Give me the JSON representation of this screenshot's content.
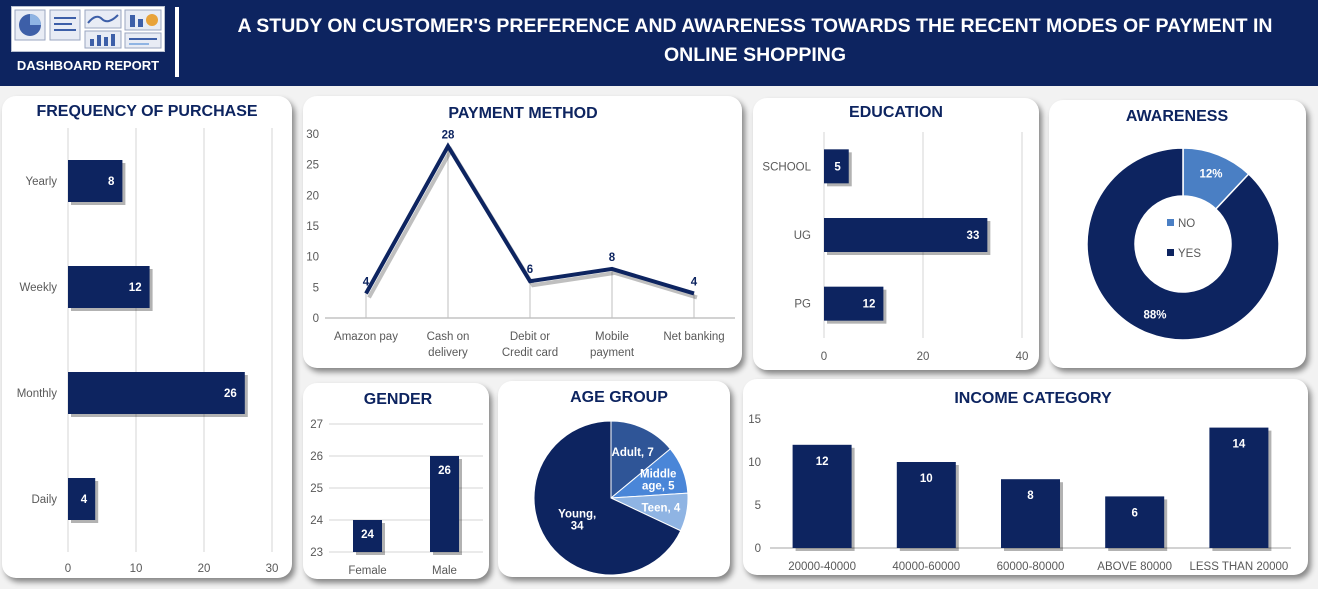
{
  "header": {
    "logo_label": "DASHBOARD REPORT",
    "title_line1": "A STUDY ON CUSTOMER'S PREFERENCE AND AWARENESS TOWARDS THE RECENT MODES OF PAYMENT IN",
    "title_line2": "ONLINE SHOPPING"
  },
  "colors": {
    "navy": "#0d2460",
    "mid_blue": "#3d6bbf",
    "light_blue": "#6fa0dc",
    "header": "#0d2460"
  },
  "chart_data": [
    {
      "id": "frequency",
      "type": "bar",
      "orientation": "horizontal",
      "title": "FREQUENCY OF PURCHASE",
      "categories": [
        "Yearly",
        "Weekly",
        "Monthly",
        "Daily"
      ],
      "values": [
        8,
        12,
        26,
        4
      ],
      "xlim": [
        0,
        30
      ],
      "ticks": [
        0,
        10,
        20,
        30
      ],
      "grid": true
    },
    {
      "id": "payment",
      "type": "line",
      "title": "PAYMENT METHOD",
      "categories": [
        [
          "Amazon pay"
        ],
        [
          "Cash on",
          "delivery"
        ],
        [
          "Debit or",
          "Credit card"
        ],
        [
          "Mobile",
          "payment"
        ],
        [
          "Net banking"
        ]
      ],
      "values": [
        4,
        28,
        6,
        8,
        4
      ],
      "ylim": [
        0,
        30
      ],
      "ticks": [
        0,
        5,
        10,
        15,
        20,
        25,
        30
      ]
    },
    {
      "id": "education",
      "type": "bar",
      "orientation": "horizontal",
      "title": "EDUCATION",
      "categories": [
        "SCHOOL",
        "UG",
        "PG"
      ],
      "values": [
        5,
        33,
        12
      ],
      "xlim": [
        0,
        40
      ],
      "ticks": [
        0,
        20,
        40
      ],
      "grid": true
    },
    {
      "id": "awareness",
      "type": "pie",
      "donut": true,
      "title": "AWARENESS",
      "labels": [
        "NO",
        "YES"
      ],
      "values": [
        12,
        88
      ],
      "value_labels": [
        "12%",
        "88%"
      ],
      "colors": [
        "#4a7fc4",
        "#0d2460"
      ],
      "legend": "center"
    },
    {
      "id": "gender",
      "type": "bar",
      "title": "GENDER",
      "categories": [
        "Female",
        "Male"
      ],
      "values": [
        24,
        26
      ],
      "ylim": [
        23,
        27
      ],
      "ticks": [
        23,
        24,
        25,
        26,
        27
      ]
    },
    {
      "id": "age",
      "type": "pie",
      "title": "AGE GROUP",
      "labels": [
        "Adult",
        "Middle age",
        "Teen",
        "Young"
      ],
      "values": [
        7,
        5,
        4,
        34
      ],
      "slice_labels": [
        [
          "Adult, 7"
        ],
        [
          "Middle",
          "age, 5"
        ],
        [
          "Teen, 4"
        ],
        [
          "Young,",
          "34"
        ]
      ],
      "colors": [
        "#2f5597",
        "#4a86d8",
        "#8fb4e3",
        "#0d2460"
      ]
    },
    {
      "id": "income",
      "type": "bar",
      "title": "INCOME CATEGORY",
      "categories": [
        "20000-40000",
        "40000-60000",
        "60000-80000",
        "ABOVE 80000",
        "LESS THAN  20000"
      ],
      "values": [
        12,
        10,
        8,
        6,
        14
      ],
      "ylim": [
        0,
        15
      ],
      "ticks": [
        0,
        5,
        10,
        15
      ]
    }
  ]
}
